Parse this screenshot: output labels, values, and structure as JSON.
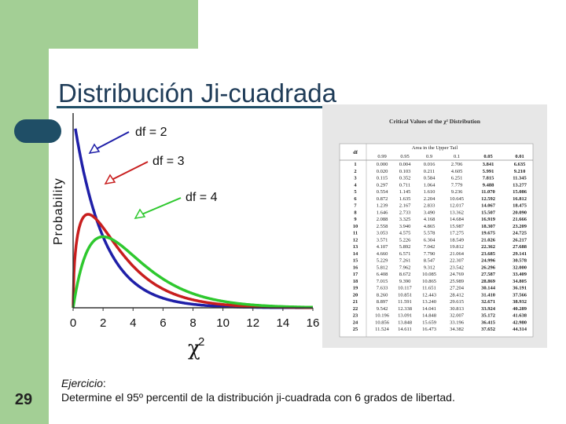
{
  "slide": {
    "title": "Distribución Ji-cuadrada",
    "number": "29",
    "exercise_label": "Ejercicio",
    "exercise_colon": ":",
    "exercise_text": "Determine el 95º percentil de la distribución ji-cuadrada con 6 grados de libertad."
  },
  "chart_data": {
    "type": "line",
    "ylabel": "Probability",
    "xlabel_base": "χ",
    "xlabel_sup": "2",
    "xlim": [
      0,
      16
    ],
    "x_ticks": [
      0,
      2,
      4,
      6,
      8,
      10,
      12,
      14,
      16
    ],
    "series": [
      {
        "name": "df = 2",
        "df": 2,
        "color": "#1f1fa8"
      },
      {
        "name": "df = 3",
        "df": 3,
        "color": "#c81e1e"
      },
      {
        "name": "df = 4",
        "df": 4,
        "color": "#2ec82e"
      }
    ]
  },
  "table": {
    "title": "Critical Values of the χ² Distribution",
    "super_header": "Area in the Upper Tail",
    "row_header": "df",
    "columns": [
      "0.99",
      "0.95",
      "0.9",
      "0.1",
      "0.05",
      "0.01"
    ],
    "rows": [
      [
        "1",
        "0.000",
        "0.004",
        "0.016",
        "2.706",
        "3.841",
        "6.635"
      ],
      [
        "2",
        "0.020",
        "0.103",
        "0.211",
        "4.605",
        "5.991",
        "9.210"
      ],
      [
        "3",
        "0.115",
        "0.352",
        "0.584",
        "6.251",
        "7.815",
        "11.345"
      ],
      [
        "4",
        "0.297",
        "0.711",
        "1.064",
        "7.779",
        "9.488",
        "13.277"
      ],
      [
        "5",
        "0.554",
        "1.145",
        "1.610",
        "9.236",
        "11.070",
        "15.086"
      ],
      [
        "6",
        "0.872",
        "1.635",
        "2.204",
        "10.645",
        "12.592",
        "16.812"
      ],
      [
        "7",
        "1.239",
        "2.167",
        "2.833",
        "12.017",
        "14.067",
        "18.475"
      ],
      [
        "8",
        "1.646",
        "2.733",
        "3.490",
        "13.362",
        "15.507",
        "20.090"
      ],
      [
        "9",
        "2.088",
        "3.325",
        "4.168",
        "14.684",
        "16.919",
        "21.666"
      ],
      [
        "10",
        "2.558",
        "3.940",
        "4.865",
        "15.987",
        "18.307",
        "23.209"
      ],
      [
        "11",
        "3.053",
        "4.575",
        "5.578",
        "17.275",
        "19.675",
        "24.725"
      ],
      [
        "12",
        "3.571",
        "5.226",
        "6.304",
        "18.549",
        "21.026",
        "26.217"
      ],
      [
        "13",
        "4.107",
        "5.892",
        "7.042",
        "19.812",
        "22.362",
        "27.688"
      ],
      [
        "14",
        "4.660",
        "6.571",
        "7.790",
        "21.064",
        "23.685",
        "29.141"
      ],
      [
        "15",
        "5.229",
        "7.261",
        "8.547",
        "22.307",
        "24.996",
        "30.578"
      ],
      [
        "16",
        "5.812",
        "7.962",
        "9.312",
        "23.542",
        "26.296",
        "32.000"
      ],
      [
        "17",
        "6.408",
        "8.672",
        "10.085",
        "24.769",
        "27.587",
        "33.409"
      ],
      [
        "18",
        "7.015",
        "9.390",
        "10.865",
        "25.989",
        "28.869",
        "34.805"
      ],
      [
        "19",
        "7.633",
        "10.117",
        "11.651",
        "27.204",
        "30.144",
        "36.191"
      ],
      [
        "20",
        "8.260",
        "10.851",
        "12.443",
        "28.412",
        "31.410",
        "37.566"
      ],
      [
        "21",
        "8.897",
        "11.591",
        "13.240",
        "29.615",
        "32.671",
        "38.932"
      ],
      [
        "22",
        "9.542",
        "12.338",
        "14.041",
        "30.813",
        "33.924",
        "40.289"
      ],
      [
        "23",
        "10.196",
        "13.091",
        "14.848",
        "32.007",
        "35.172",
        "41.638"
      ],
      [
        "24",
        "10.856",
        "13.848",
        "15.659",
        "33.196",
        "36.415",
        "42.980"
      ],
      [
        "25",
        "11.524",
        "14.611",
        "16.473",
        "34.382",
        "37.652",
        "44.314"
      ]
    ]
  }
}
